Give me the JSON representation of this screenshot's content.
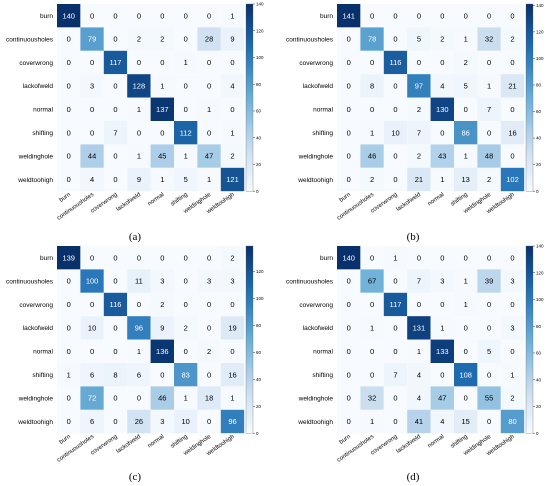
{
  "colors": {
    "low": "#f7fbff",
    "high": "#08306b",
    "dark_text": "#000000",
    "light_text": "#ffffff"
  },
  "chart_data": [
    {
      "type": "heatmap",
      "panel_label": "(a)",
      "row_labels": [
        "burn",
        "continuousholes",
        "coverwrong",
        "lackofweld",
        "normal",
        "shifting",
        "weldinghole",
        "weldtoohigh"
      ],
      "col_labels": [
        "burn",
        "continuousholes",
        "coverwrong",
        "lackofweld",
        "normal",
        "shifting",
        "weldinghole",
        "weldtoohigh"
      ],
      "values": [
        [
          140,
          0,
          0,
          0,
          0,
          0,
          0,
          1
        ],
        [
          0,
          79,
          0,
          2,
          2,
          0,
          28,
          9
        ],
        [
          0,
          0,
          117,
          0,
          0,
          1,
          0,
          0
        ],
        [
          0,
          3,
          0,
          128,
          1,
          0,
          0,
          4
        ],
        [
          0,
          0,
          0,
          1,
          137,
          0,
          1,
          0
        ],
        [
          0,
          0,
          7,
          0,
          0,
          112,
          0,
          1
        ],
        [
          0,
          44,
          0,
          1,
          45,
          1,
          47,
          2
        ],
        [
          0,
          4,
          0,
          9,
          1,
          5,
          1,
          121
        ]
      ],
      "colorbar_ticks": [
        0,
        20,
        40,
        60,
        80,
        100,
        120,
        140
      ],
      "vmax": 140
    },
    {
      "type": "heatmap",
      "panel_label": "(b)",
      "row_labels": [
        "burn",
        "continuousholes",
        "coverwrong",
        "lackofweld",
        "normal",
        "shifting",
        "weldinghole",
        "weldtoohigh"
      ],
      "col_labels": [
        "burn",
        "continuousholes",
        "coverwrong",
        "lackofweld",
        "normal",
        "shifting",
        "weldinghole",
        "weldtoohigh"
      ],
      "values": [
        [
          141,
          0,
          0,
          0,
          0,
          0,
          0,
          0
        ],
        [
          0,
          78,
          0,
          5,
          2,
          1,
          32,
          2
        ],
        [
          0,
          0,
          116,
          0,
          0,
          2,
          0,
          0
        ],
        [
          0,
          8,
          0,
          97,
          4,
          5,
          1,
          21
        ],
        [
          0,
          0,
          0,
          2,
          130,
          0,
          7,
          0
        ],
        [
          0,
          1,
          10,
          7,
          0,
          86,
          0,
          16
        ],
        [
          0,
          46,
          0,
          2,
          43,
          1,
          48,
          0
        ],
        [
          0,
          2,
          0,
          21,
          1,
          13,
          2,
          102
        ]
      ],
      "colorbar_ticks": [
        0,
        20,
        40,
        60,
        80,
        100,
        120,
        140
      ],
      "vmax": 141
    },
    {
      "type": "heatmap",
      "panel_label": "(c)",
      "row_labels": [
        "burn",
        "continuousholes",
        "coverwrong",
        "lackofweld",
        "normal",
        "shifting",
        "weldinghole",
        "weldtoohigh"
      ],
      "col_labels": [
        "burn",
        "continuousholes",
        "coverwrong",
        "lackofweld",
        "normal",
        "shifting",
        "weldinghole",
        "weldtoohigh"
      ],
      "values": [
        [
          139,
          0,
          0,
          0,
          0,
          0,
          0,
          2
        ],
        [
          0,
          100,
          0,
          11,
          3,
          0,
          3,
          3
        ],
        [
          0,
          0,
          116,
          0,
          2,
          0,
          0,
          0
        ],
        [
          0,
          10,
          0,
          96,
          9,
          2,
          0,
          19
        ],
        [
          0,
          0,
          0,
          1,
          136,
          0,
          2,
          0
        ],
        [
          1,
          6,
          8,
          6,
          0,
          83,
          0,
          16
        ],
        [
          0,
          72,
          0,
          0,
          46,
          1,
          18,
          1
        ],
        [
          0,
          6,
          0,
          26,
          3,
          10,
          0,
          96
        ]
      ],
      "colorbar_ticks": [
        0,
        20,
        40,
        60,
        80,
        100,
        120
      ],
      "vmax": 139
    },
    {
      "type": "heatmap",
      "panel_label": "(d)",
      "row_labels": [
        "burn",
        "continuousholes",
        "coverwrong",
        "lackofweld",
        "normal",
        "shifting",
        "weldinghole",
        "weldtoohigh"
      ],
      "col_labels": [
        "burn",
        "continuousholes",
        "coverwrong",
        "lackofweld",
        "normal",
        "shifting",
        "weldinghole",
        "weldtoohigh"
      ],
      "values": [
        [
          140,
          0,
          1,
          0,
          0,
          0,
          0,
          0
        ],
        [
          0,
          67,
          0,
          7,
          3,
          1,
          39,
          3
        ],
        [
          0,
          0,
          117,
          0,
          0,
          1,
          0,
          0
        ],
        [
          0,
          1,
          0,
          131,
          1,
          0,
          0,
          3
        ],
        [
          0,
          0,
          0,
          1,
          133,
          0,
          5,
          0
        ],
        [
          0,
          0,
          7,
          4,
          0,
          108,
          0,
          1
        ],
        [
          0,
          32,
          0,
          4,
          47,
          0,
          55,
          2
        ],
        [
          0,
          1,
          0,
          41,
          4,
          15,
          0,
          80
        ]
      ],
      "colorbar_ticks": [
        0,
        20,
        40,
        60,
        80,
        100,
        120,
        140
      ],
      "vmax": 140
    }
  ]
}
